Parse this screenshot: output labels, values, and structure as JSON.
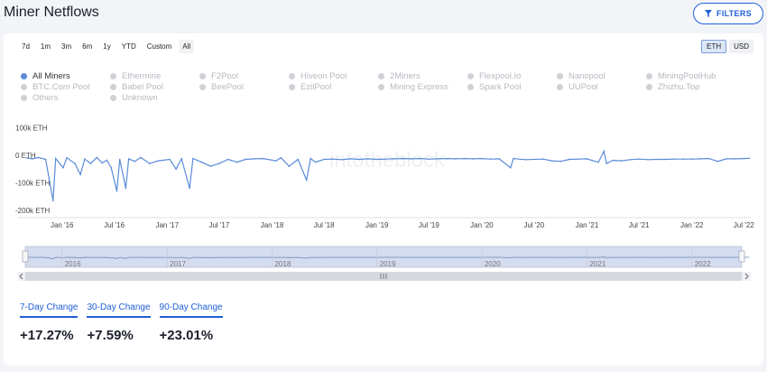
{
  "page": {
    "title": "Miner Netflows",
    "filters_label": "FILTERS"
  },
  "ranges": [
    "7d",
    "1m",
    "3m",
    "6m",
    "1y",
    "YTD",
    "Custom",
    "All"
  ],
  "units": [
    {
      "label": "ETH",
      "active": true
    },
    {
      "label": "USD",
      "active": false
    }
  ],
  "legend": [
    {
      "label": "All Miners",
      "active": true
    },
    {
      "label": "Ethermine",
      "active": false
    },
    {
      "label": "F2Pool",
      "active": false
    },
    {
      "label": "Hiveon Pool",
      "active": false
    },
    {
      "label": "2Miners",
      "active": false
    },
    {
      "label": "Flexpool.Io",
      "active": false
    },
    {
      "label": "Nanopool",
      "active": false
    },
    {
      "label": "MiningPoolHub",
      "active": false
    },
    {
      "label": "BTC.Com Pool",
      "active": false
    },
    {
      "label": "Babel Pool",
      "active": false
    },
    {
      "label": "BeePool",
      "active": false
    },
    {
      "label": "EzilPool",
      "active": false
    },
    {
      "label": "Mining Express",
      "active": false
    },
    {
      "label": "Spark Pool",
      "active": false
    },
    {
      "label": "UUPool",
      "active": false
    },
    {
      "label": "Zhizhu.Top",
      "active": false
    },
    {
      "label": "Others",
      "active": false
    },
    {
      "label": "Unknown",
      "active": false
    }
  ],
  "colors": {
    "series": "#5b8bd8",
    "accent": "#1f5fd6",
    "navigator_fill": "#d4dcf0"
  },
  "chart_data": {
    "type": "line",
    "title": "",
    "series": [
      {
        "name": "All Miners",
        "points": [
          [
            "2015-09-01",
            0
          ],
          [
            "2015-09-20",
            -3000
          ],
          [
            "2015-10-10",
            2000
          ],
          [
            "2015-11-05",
            -5000
          ],
          [
            "2015-12-01",
            -155000
          ],
          [
            "2015-12-10",
            -2000
          ],
          [
            "2016-01-05",
            -35000
          ],
          [
            "2016-01-18",
            1000
          ],
          [
            "2016-02-15",
            -20000
          ],
          [
            "2016-03-05",
            -60000
          ],
          [
            "2016-03-20",
            -4000
          ],
          [
            "2016-04-10",
            -20000
          ],
          [
            "2016-05-01",
            2000
          ],
          [
            "2016-05-20",
            -18000
          ],
          [
            "2016-06-05",
            -8000
          ],
          [
            "2016-06-20",
            -35000
          ],
          [
            "2016-07-10",
            -120000
          ],
          [
            "2016-07-20",
            -5000
          ],
          [
            "2016-08-10",
            -110000
          ],
          [
            "2016-08-20",
            -3000
          ],
          [
            "2016-09-10",
            -12000
          ],
          [
            "2016-10-01",
            2000
          ],
          [
            "2016-11-01",
            -20000
          ],
          [
            "2016-12-01",
            -10000
          ],
          [
            "2017-01-10",
            -5000
          ],
          [
            "2017-02-01",
            -40000
          ],
          [
            "2017-02-20",
            -3000
          ],
          [
            "2017-03-20",
            -110000
          ],
          [
            "2017-04-01",
            -2000
          ],
          [
            "2017-05-01",
            -15000
          ],
          [
            "2017-06-01",
            -30000
          ],
          [
            "2017-07-01",
            -20000
          ],
          [
            "2017-08-01",
            -5000
          ],
          [
            "2017-09-01",
            -15000
          ],
          [
            "2017-10-01",
            -5000
          ],
          [
            "2017-11-01",
            -3000
          ],
          [
            "2017-12-01",
            -2000
          ],
          [
            "2018-01-15",
            -10000
          ],
          [
            "2018-02-01",
            1000
          ],
          [
            "2018-03-01",
            -30000
          ],
          [
            "2018-04-01",
            -5000
          ],
          [
            "2018-05-01",
            -80000
          ],
          [
            "2018-05-15",
            -2000
          ],
          [
            "2018-06-01",
            -15000
          ],
          [
            "2018-07-01",
            -5000
          ],
          [
            "2018-08-01",
            -4000
          ],
          [
            "2018-09-01",
            -6000
          ],
          [
            "2018-10-01",
            -3000
          ],
          [
            "2018-11-01",
            -5000
          ],
          [
            "2018-12-01",
            -3000
          ],
          [
            "2019-01-01",
            -5000
          ],
          [
            "2019-02-01",
            -4000
          ],
          [
            "2019-03-01",
            -3000
          ],
          [
            "2019-04-01",
            -2000
          ],
          [
            "2019-05-01",
            -3000
          ],
          [
            "2019-06-01",
            -2000
          ],
          [
            "2019-07-01",
            -4000
          ],
          [
            "2019-08-01",
            -3000
          ],
          [
            "2019-09-01",
            -2000
          ],
          [
            "2019-10-01",
            -3000
          ],
          [
            "2019-11-01",
            -2000
          ],
          [
            "2019-12-01",
            -3000
          ],
          [
            "2020-01-01",
            -2000
          ],
          [
            "2020-02-01",
            -4000
          ],
          [
            "2020-03-01",
            -3000
          ],
          [
            "2020-04-10",
            -35000
          ],
          [
            "2020-04-20",
            -2000
          ],
          [
            "2020-06-01",
            -6000
          ],
          [
            "2020-08-01",
            -4000
          ],
          [
            "2020-09-01",
            -10000
          ],
          [
            "2020-10-01",
            -12000
          ],
          [
            "2020-11-01",
            -5000
          ],
          [
            "2020-12-01",
            -4000
          ],
          [
            "2021-01-01",
            -3000
          ],
          [
            "2021-01-20",
            -9000
          ],
          [
            "2021-02-10",
            -15000
          ],
          [
            "2021-03-01",
            25000
          ],
          [
            "2021-03-10",
            -20000
          ],
          [
            "2021-04-01",
            -8000
          ],
          [
            "2021-05-01",
            -10000
          ],
          [
            "2021-06-01",
            -6000
          ],
          [
            "2021-07-01",
            -4000
          ],
          [
            "2021-08-01",
            -6000
          ],
          [
            "2021-09-01",
            -5000
          ],
          [
            "2021-10-01",
            -5000
          ],
          [
            "2021-11-01",
            -4000
          ],
          [
            "2021-12-01",
            -4000
          ],
          [
            "2022-01-01",
            -4000
          ],
          [
            "2022-02-01",
            -3000
          ],
          [
            "2022-03-01",
            -2000
          ],
          [
            "2022-04-01",
            -12000
          ],
          [
            "2022-05-01",
            -3000
          ],
          [
            "2022-06-01",
            -3000
          ],
          [
            "2022-07-01",
            -2000
          ],
          [
            "2022-07-20",
            -1000
          ]
        ]
      }
    ],
    "x_type": "date",
    "xlim": [
      "2015-08-01",
      "2022-07-25"
    ],
    "ylim": [
      -220000,
      115000
    ],
    "y_ticks": [
      {
        "label": "100k ETH",
        "value": 100000
      },
      {
        "label": "0 ETH",
        "value": 0
      },
      {
        "label": "-100k ETH",
        "value": -100000
      },
      {
        "label": "-200k ETH",
        "value": -200000
      }
    ],
    "x_ticks": [
      {
        "label": "Jan '16",
        "date": "2016-01-01"
      },
      {
        "label": "Jul '16",
        "date": "2016-07-01"
      },
      {
        "label": "Jan '17",
        "date": "2017-01-01"
      },
      {
        "label": "Jul '17",
        "date": "2017-07-01"
      },
      {
        "label": "Jan '18",
        "date": "2018-01-01"
      },
      {
        "label": "Jul '18",
        "date": "2018-07-01"
      },
      {
        "label": "Jan '19",
        "date": "2019-01-01"
      },
      {
        "label": "Jul '19",
        "date": "2019-07-01"
      },
      {
        "label": "Jan '20",
        "date": "2020-01-01"
      },
      {
        "label": "Jul '20",
        "date": "2020-07-01"
      },
      {
        "label": "Jan '21",
        "date": "2021-01-01"
      },
      {
        "label": "Jul '21",
        "date": "2021-07-01"
      },
      {
        "label": "Jan '22",
        "date": "2022-01-01"
      },
      {
        "label": "Jul '22",
        "date": "2022-07-01"
      }
    ],
    "navigator_ticks": [
      {
        "label": "2016",
        "date": "2016-01-01"
      },
      {
        "label": "2017",
        "date": "2017-01-01"
      },
      {
        "label": "2018",
        "date": "2018-01-01"
      },
      {
        "label": "2019",
        "date": "2019-01-01"
      },
      {
        "label": "2020",
        "date": "2020-01-01"
      },
      {
        "label": "2021",
        "date": "2021-01-01"
      },
      {
        "label": "2022",
        "date": "2022-01-01"
      }
    ],
    "watermark": "intotheblock",
    "grid": false
  },
  "stats": [
    {
      "label": "7-Day Change",
      "value": "+17.27%"
    },
    {
      "label": "30-Day Change",
      "value": "+7.59%"
    },
    {
      "label": "90-Day Change",
      "value": "+23.01%"
    }
  ]
}
